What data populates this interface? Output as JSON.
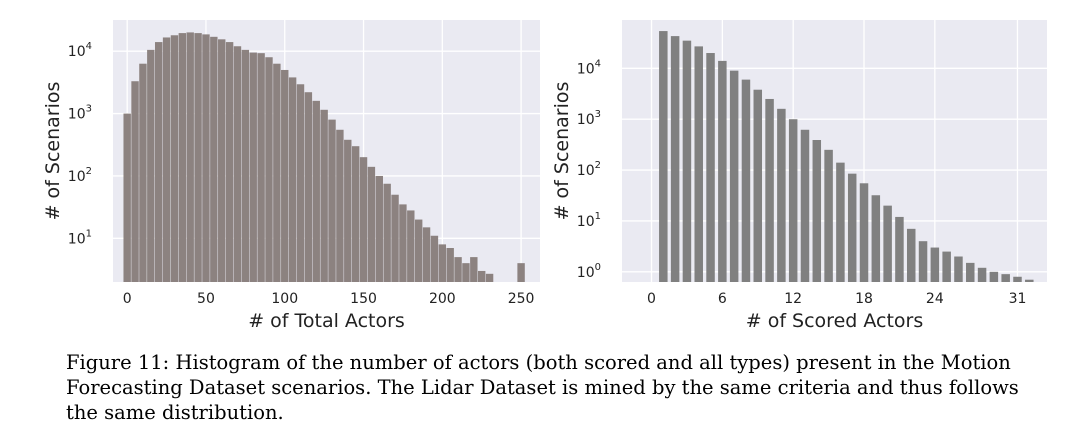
{
  "chart_data": [
    {
      "type": "bar",
      "xlabel": "# of Total Actors",
      "ylabel": "# of Scenarios",
      "yscale": "log",
      "xlim": [
        -9,
        262
      ],
      "ylim_exponent": [
        0.3,
        4.5
      ],
      "bin_width": 5,
      "xticks": [
        0,
        50,
        100,
        150,
        200,
        250
      ],
      "xtick_labels": [
        "0",
        "50",
        "100",
        "150",
        "200",
        "250"
      ],
      "yticks_exponent": [
        1,
        2,
        3,
        4
      ],
      "grid": true,
      "background": "#eaeaf2",
      "bar_color": "#8c8280",
      "bins": [
        {
          "x": 0,
          "value": 1000
        },
        {
          "x": 5,
          "value": 3300
        },
        {
          "x": 10,
          "value": 6300
        },
        {
          "x": 15,
          "value": 10500
        },
        {
          "x": 20,
          "value": 14000
        },
        {
          "x": 25,
          "value": 16600
        },
        {
          "x": 30,
          "value": 18000
        },
        {
          "x": 35,
          "value": 19500
        },
        {
          "x": 40,
          "value": 20000
        },
        {
          "x": 45,
          "value": 19500
        },
        {
          "x": 50,
          "value": 18600
        },
        {
          "x": 55,
          "value": 17000
        },
        {
          "x": 60,
          "value": 15500
        },
        {
          "x": 65,
          "value": 14000
        },
        {
          "x": 70,
          "value": 12000
        },
        {
          "x": 75,
          "value": 10500
        },
        {
          "x": 80,
          "value": 9500
        },
        {
          "x": 85,
          "value": 9300
        },
        {
          "x": 90,
          "value": 8000
        },
        {
          "x": 95,
          "value": 6300
        },
        {
          "x": 100,
          "value": 5000
        },
        {
          "x": 105,
          "value": 3800
        },
        {
          "x": 110,
          "value": 2950
        },
        {
          "x": 115,
          "value": 2200
        },
        {
          "x": 120,
          "value": 1600
        },
        {
          "x": 125,
          "value": 1150
        },
        {
          "x": 130,
          "value": 800
        },
        {
          "x": 135,
          "value": 550
        },
        {
          "x": 140,
          "value": 380
        },
        {
          "x": 145,
          "value": 300
        },
        {
          "x": 150,
          "value": 200
        },
        {
          "x": 155,
          "value": 140
        },
        {
          "x": 160,
          "value": 100
        },
        {
          "x": 165,
          "value": 75
        },
        {
          "x": 170,
          "value": 50
        },
        {
          "x": 175,
          "value": 35
        },
        {
          "x": 180,
          "value": 28
        },
        {
          "x": 185,
          "value": 20
        },
        {
          "x": 190,
          "value": 15
        },
        {
          "x": 195,
          "value": 11
        },
        {
          "x": 200,
          "value": 8
        },
        {
          "x": 205,
          "value": 7
        },
        {
          "x": 210,
          "value": 5
        },
        {
          "x": 215,
          "value": 4
        },
        {
          "x": 220,
          "value": 5
        },
        {
          "x": 225,
          "value": 3
        },
        {
          "x": 230,
          "value": 2.7
        },
        {
          "x": 235,
          "value": 1.9
        },
        {
          "x": 240,
          "value": 1.7
        },
        {
          "x": 245,
          "value": 1.5
        },
        {
          "x": 250,
          "value": 4
        },
        {
          "x": 255,
          "value": 1.7
        }
      ]
    },
    {
      "type": "bar",
      "xlabel": "# of Scored Actors",
      "ylabel": "# of Scenarios",
      "yscale": "log",
      "xlim": [
        -2.5,
        33.5
      ],
      "ylim_exponent": [
        -0.2,
        4.95
      ],
      "bin_width": 1,
      "xticks": [
        0,
        6,
        12,
        18,
        24,
        31
      ],
      "xtick_labels": [
        "0",
        "6",
        "12",
        "18",
        "24",
        "31"
      ],
      "yticks_exponent": [
        0,
        1,
        2,
        3,
        4
      ],
      "grid": true,
      "background": "#eaeaf2",
      "bar_color": "#808080",
      "bins": [
        {
          "x": 1,
          "value": 54000
        },
        {
          "x": 2,
          "value": 43000
        },
        {
          "x": 3,
          "value": 35000
        },
        {
          "x": 4,
          "value": 27000
        },
        {
          "x": 5,
          "value": 20000
        },
        {
          "x": 6,
          "value": 14000
        },
        {
          "x": 7,
          "value": 9000
        },
        {
          "x": 8,
          "value": 6000
        },
        {
          "x": 9,
          "value": 3800
        },
        {
          "x": 10,
          "value": 2500
        },
        {
          "x": 11,
          "value": 1600
        },
        {
          "x": 12,
          "value": 1000
        },
        {
          "x": 13,
          "value": 620
        },
        {
          "x": 14,
          "value": 390
        },
        {
          "x": 15,
          "value": 250
        },
        {
          "x": 16,
          "value": 140
        },
        {
          "x": 17,
          "value": 85
        },
        {
          "x": 18,
          "value": 55
        },
        {
          "x": 19,
          "value": 32
        },
        {
          "x": 20,
          "value": 20
        },
        {
          "x": 21,
          "value": 12
        },
        {
          "x": 22,
          "value": 7
        },
        {
          "x": 23,
          "value": 4
        },
        {
          "x": 24,
          "value": 3
        },
        {
          "x": 25,
          "value": 2.5
        },
        {
          "x": 26,
          "value": 2
        },
        {
          "x": 27,
          "value": 1.5
        },
        {
          "x": 28,
          "value": 1.2
        },
        {
          "x": 29,
          "value": 1
        },
        {
          "x": 30,
          "value": 0.9
        },
        {
          "x": 31,
          "value": 0.8
        },
        {
          "x": 32,
          "value": 0.7
        }
      ]
    }
  ],
  "caption": "Figure 11: Histogram of the number of actors (both scored and all types) present in the Motion Forecasting Dataset scenarios. The Lidar Dataset is mined by the same criteria and thus follows the same distribution."
}
